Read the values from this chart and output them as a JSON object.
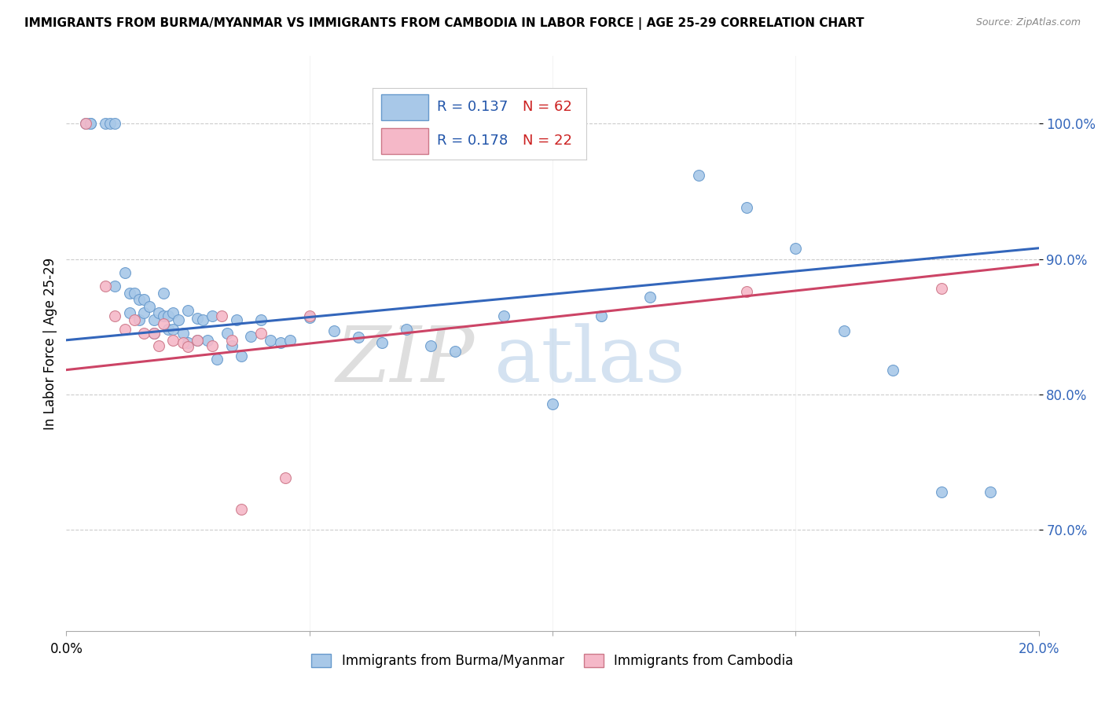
{
  "title": "IMMIGRANTS FROM BURMA/MYANMAR VS IMMIGRANTS FROM CAMBODIA IN LABOR FORCE | AGE 25-29 CORRELATION CHART",
  "source": "Source: ZipAtlas.com",
  "ylabel": "In Labor Force | Age 25-29",
  "ytick_values": [
    0.7,
    0.8,
    0.9,
    1.0
  ],
  "xlim": [
    0.0,
    0.2
  ],
  "ylim": [
    0.625,
    1.05
  ],
  "legend_blue_R": "R = 0.137",
  "legend_blue_N": "N = 62",
  "legend_pink_R": "R = 0.178",
  "legend_pink_N": "N = 22",
  "legend_label_blue": "Immigrants from Burma/Myanmar",
  "legend_label_pink": "Immigrants from Cambodia",
  "blue_color": "#a8c8e8",
  "blue_edge_color": "#6699cc",
  "blue_line_color": "#3366bb",
  "pink_color": "#f5b8c8",
  "pink_edge_color": "#cc7788",
  "pink_line_color": "#cc4466",
  "blue_scatter_x": [
    0.004,
    0.005,
    0.005,
    0.008,
    0.009,
    0.01,
    0.01,
    0.012,
    0.013,
    0.013,
    0.014,
    0.015,
    0.015,
    0.016,
    0.016,
    0.017,
    0.018,
    0.018,
    0.019,
    0.02,
    0.02,
    0.021,
    0.021,
    0.022,
    0.022,
    0.023,
    0.024,
    0.025,
    0.025,
    0.027,
    0.027,
    0.028,
    0.029,
    0.03,
    0.031,
    0.033,
    0.034,
    0.035,
    0.036,
    0.038,
    0.04,
    0.042,
    0.044,
    0.046,
    0.05,
    0.055,
    0.06,
    0.065,
    0.07,
    0.075,
    0.08,
    0.09,
    0.1,
    0.11,
    0.12,
    0.13,
    0.14,
    0.15,
    0.16,
    0.17,
    0.18,
    0.19
  ],
  "blue_scatter_y": [
    1.0,
    1.0,
    1.0,
    1.0,
    1.0,
    1.0,
    0.88,
    0.89,
    0.875,
    0.86,
    0.875,
    0.87,
    0.855,
    0.87,
    0.86,
    0.865,
    0.855,
    0.845,
    0.86,
    0.875,
    0.858,
    0.858,
    0.848,
    0.86,
    0.848,
    0.855,
    0.845,
    0.862,
    0.838,
    0.856,
    0.84,
    0.855,
    0.84,
    0.858,
    0.826,
    0.845,
    0.836,
    0.855,
    0.828,
    0.843,
    0.855,
    0.84,
    0.838,
    0.84,
    0.857,
    0.847,
    0.842,
    0.838,
    0.848,
    0.836,
    0.832,
    0.858,
    0.793,
    0.858,
    0.872,
    0.962,
    0.938,
    0.908,
    0.847,
    0.818,
    0.728,
    0.728
  ],
  "pink_scatter_x": [
    0.004,
    0.008,
    0.01,
    0.012,
    0.014,
    0.016,
    0.018,
    0.019,
    0.02,
    0.022,
    0.024,
    0.025,
    0.027,
    0.03,
    0.032,
    0.034,
    0.036,
    0.04,
    0.045,
    0.05,
    0.14,
    0.18
  ],
  "pink_scatter_y": [
    1.0,
    0.88,
    0.858,
    0.848,
    0.855,
    0.845,
    0.845,
    0.836,
    0.852,
    0.84,
    0.838,
    0.835,
    0.84,
    0.836,
    0.858,
    0.84,
    0.715,
    0.845,
    0.738,
    0.858,
    0.876,
    0.878
  ],
  "blue_trend_x": [
    0.0,
    0.2
  ],
  "blue_trend_y": [
    0.84,
    0.908
  ],
  "pink_trend_x": [
    0.0,
    0.2
  ],
  "pink_trend_y": [
    0.818,
    0.896
  ]
}
